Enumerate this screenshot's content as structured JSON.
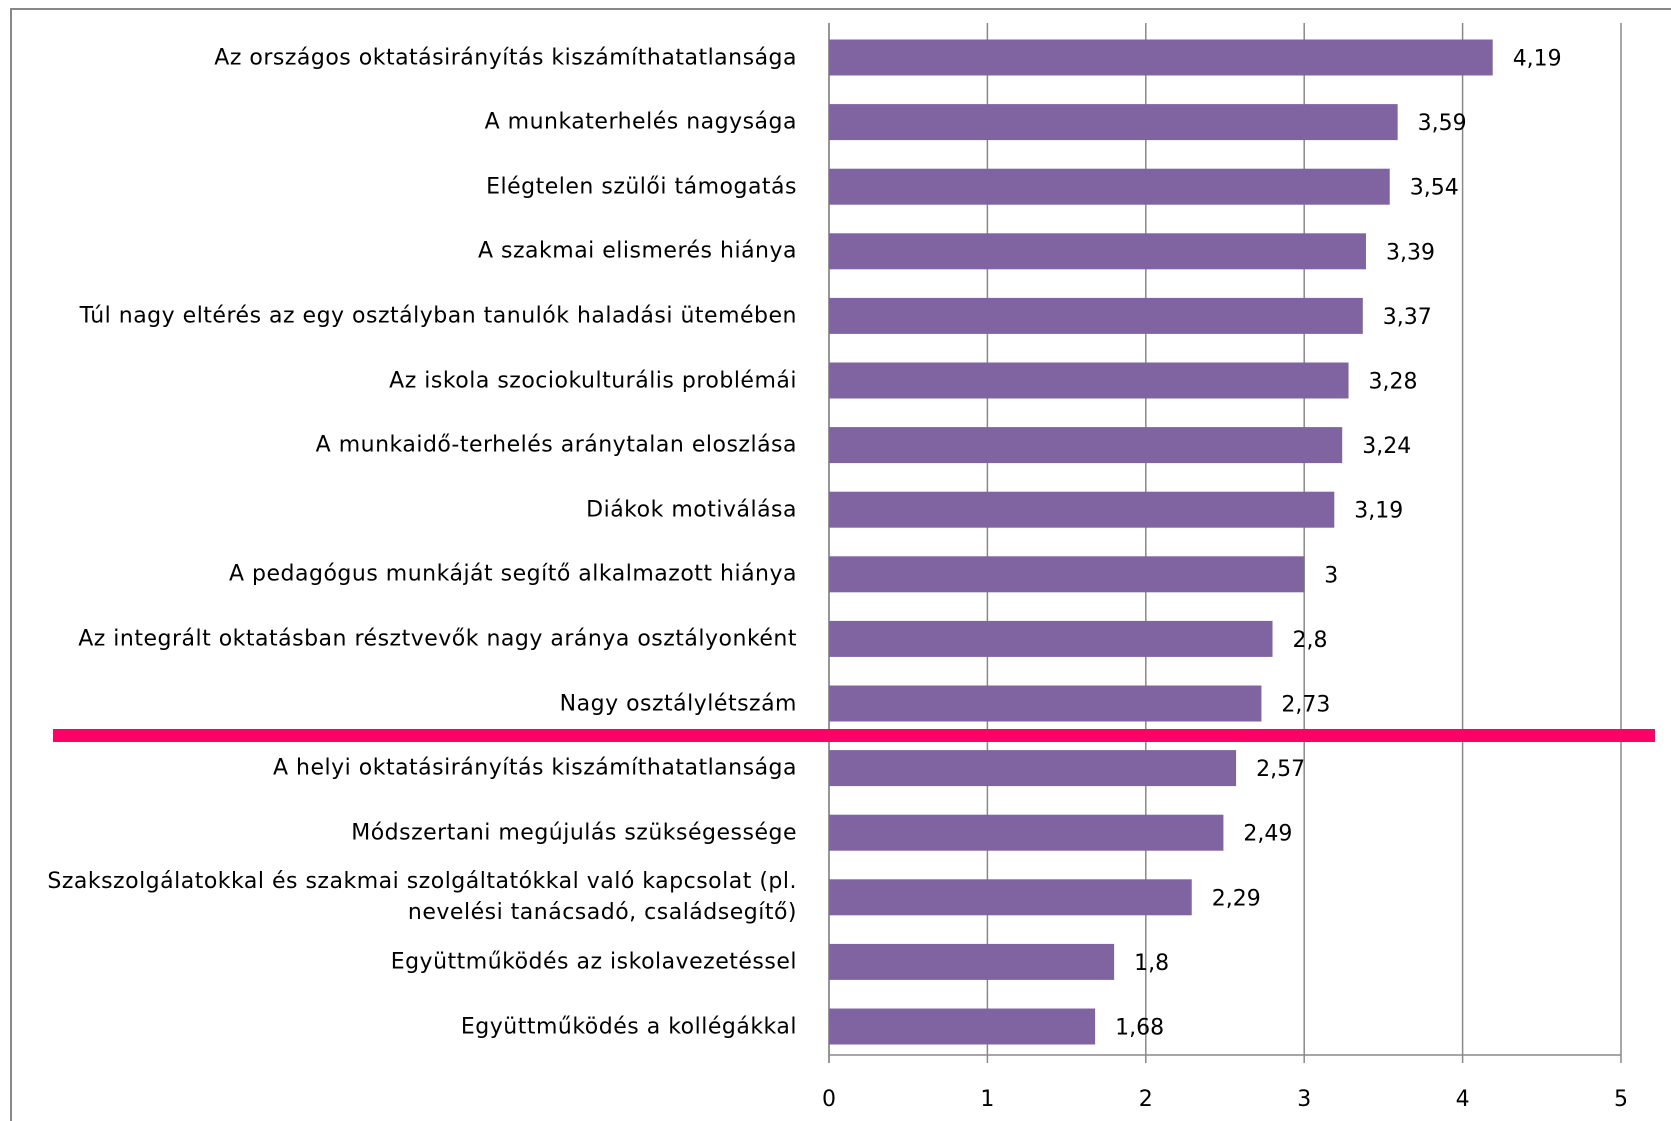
{
  "chart_data": {
    "type": "bar",
    "orientation": "horizontal",
    "categories": [
      "Az országos oktatásirányítás kiszámíthatatlansága",
      "A munkaterhelés nagysága",
      "Elégtelen szülői támogatás",
      "A szakmai elismerés hiánya",
      "Túl nagy eltérés az egy osztályban tanulók haladási ütemében",
      "Az iskola szociokulturális problémái",
      "A munkaidő-terhelés aránytalan eloszlása",
      "Diákok motiválása",
      "A pedagógus munkáját segítő alkalmazott hiánya",
      "Az integrált oktatásban résztvevők nagy aránya osztályonként",
      "Nagy osztálylétszám",
      "A helyi oktatásirányítás kiszámíthatatlansága",
      "Módszertani megújulás szükségessége",
      "Szakszolgálatokkal és szakmai szolgáltatókkal való kapcsolat (pl. nevelési tanácsadó, családsegítő)",
      "Együttműködés az iskolavezetéssel",
      "Együttműködés a kollégákkal"
    ],
    "values": [
      4.19,
      3.59,
      3.54,
      3.39,
      3.37,
      3.28,
      3.24,
      3.19,
      3,
      2.8,
      2.73,
      2.57,
      2.49,
      2.29,
      1.8,
      1.68
    ],
    "value_labels": [
      "4,19",
      "3,59",
      "3,54",
      "3,39",
      "3,37",
      "3,28",
      "3,24",
      "3,19",
      "3",
      "2,8",
      "2,73",
      "2,57",
      "2,49",
      "2,29",
      "1,8",
      "1,68"
    ],
    "color": "#8064a2",
    "xlim": [
      0,
      5
    ],
    "xticks": [
      0,
      1,
      2,
      3,
      4,
      5
    ],
    "grid": true
  }
}
